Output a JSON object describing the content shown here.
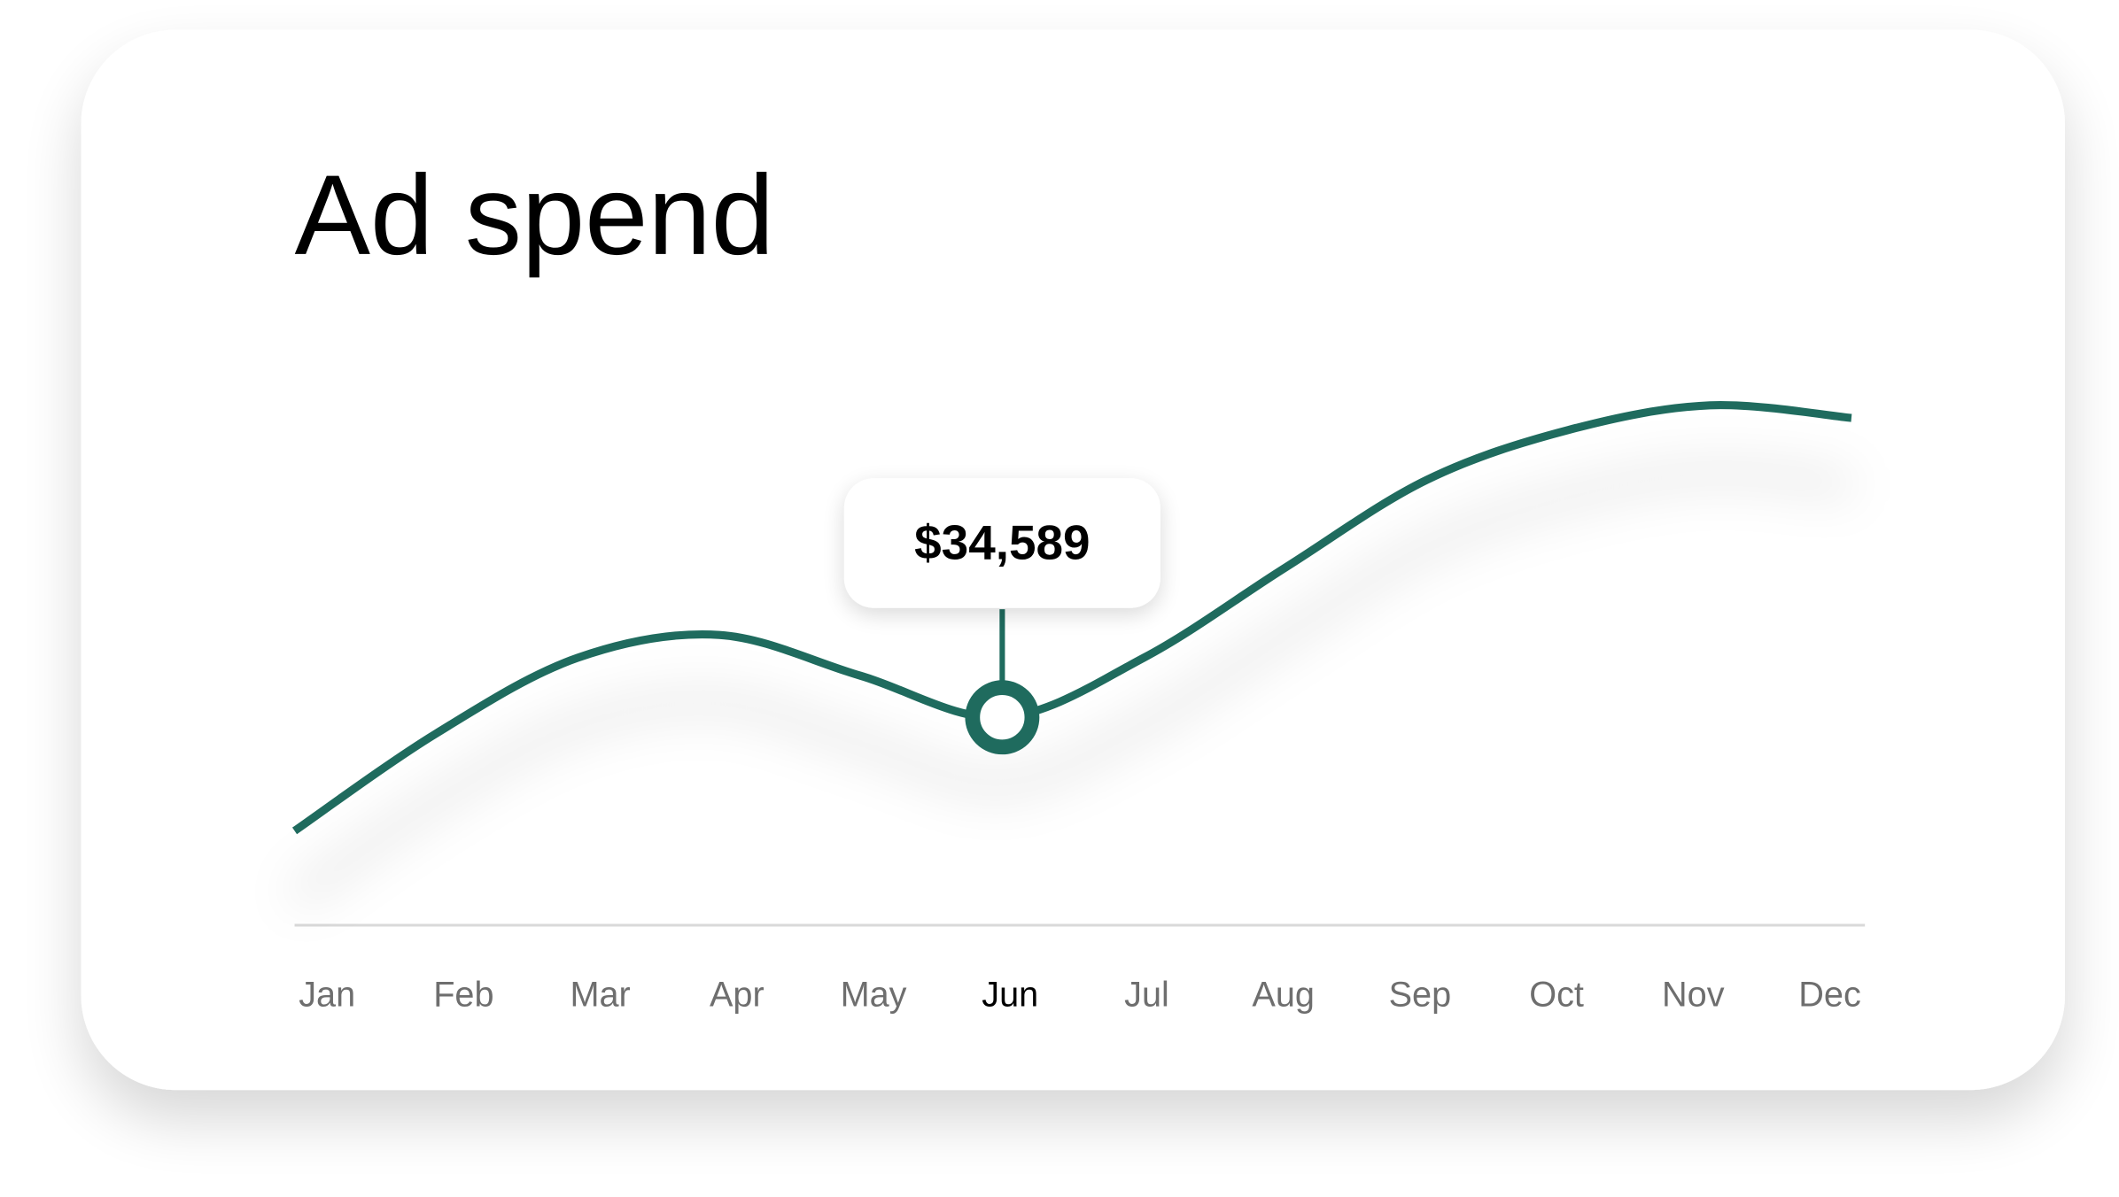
{
  "chart_data": {
    "type": "line",
    "title": "Ad spend",
    "categories": [
      "Jan",
      "Feb",
      "Mar",
      "Apr",
      "May",
      "Jun",
      "Jul",
      "Aug",
      "Sep",
      "Oct",
      "Nov",
      "Dec"
    ],
    "values": [
      15700,
      31900,
      44500,
      48300,
      41500,
      34589,
      44500,
      59500,
      74100,
      82400,
      86500,
      84400
    ],
    "value_labels": [
      null,
      null,
      null,
      null,
      null,
      "$34,589",
      null,
      null,
      null,
      null,
      null,
      null
    ],
    "color": "#1f6b5e",
    "ylim": [
      0,
      100000
    ]
  }
}
